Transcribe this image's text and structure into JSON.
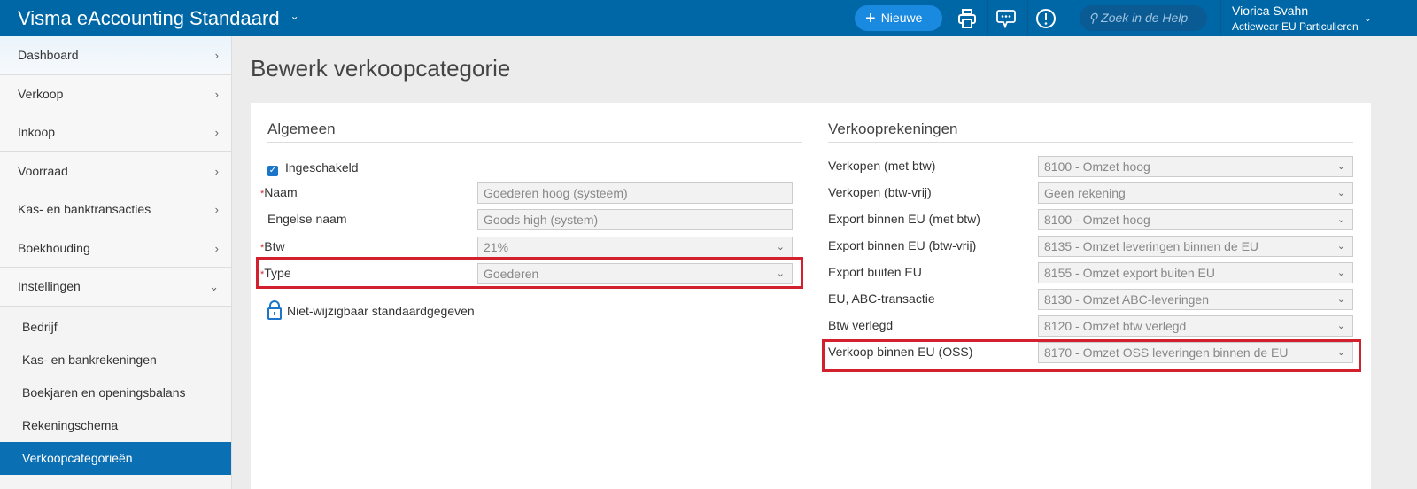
{
  "topbar": {
    "brand": "Visma eAccounting Standaard",
    "new_label": "Nieuwe",
    "search_placeholder": "Zoek in de Help",
    "user_name": "Viorica Svahn",
    "company": "Actiewear EU Particulieren"
  },
  "sidebar": {
    "items": [
      {
        "label": "Dashboard"
      },
      {
        "label": "Verkoop"
      },
      {
        "label": "Inkoop"
      },
      {
        "label": "Voorraad"
      },
      {
        "label": "Kas- en banktransacties"
      },
      {
        "label": "Boekhouding"
      },
      {
        "label": "Instellingen"
      }
    ],
    "subitems": [
      {
        "label": "Bedrijf"
      },
      {
        "label": "Kas- en bankrekeningen"
      },
      {
        "label": "Boekjaren en openingsbalans"
      },
      {
        "label": "Rekeningschema"
      },
      {
        "label": "Verkoopcategorieën",
        "active": true
      }
    ]
  },
  "page": {
    "title": "Bewerk verkoopcategorie"
  },
  "general": {
    "heading": "Algemeen",
    "enabled_label": "Ingeschakeld",
    "enabled": true,
    "fields": [
      {
        "label": "Naam",
        "required": true,
        "value": "Goederen hoog (systeem)"
      },
      {
        "label": "Engelse naam",
        "required": false,
        "value": "Goods high (system)"
      },
      {
        "label": "Btw",
        "required": true,
        "value": "21%",
        "dropdown": true
      },
      {
        "label": "Type",
        "required": true,
        "value": "Goederen",
        "dropdown": true
      }
    ],
    "lock_note": "Niet-wijzigbaar standaardgegeven"
  },
  "accounts": {
    "heading": "Verkooprekeningen",
    "rows": [
      {
        "label": "Verkopen (met btw)",
        "value": "8100 - Omzet hoog"
      },
      {
        "label": "Verkopen (btw-vrij)",
        "value": "Geen rekening"
      },
      {
        "label": "Export binnen EU (met btw)",
        "value": "8100 - Omzet hoog"
      },
      {
        "label": "Export binnen EU (btw-vrij)",
        "value": "8135 - Omzet leveringen binnen de EU"
      },
      {
        "label": "Export buiten EU",
        "value": "8155 - Omzet export buiten EU"
      },
      {
        "label": "EU, ABC-transactie",
        "value": "8130 - Omzet ABC-leveringen"
      },
      {
        "label": "Btw verlegd",
        "value": "8120 - Omzet btw verlegd"
      },
      {
        "label": "Verkoop binnen EU (OSS)",
        "value": "8170 - Omzet OSS leveringen binnen de EU"
      }
    ]
  },
  "colors": {
    "topbar": "#0067a7",
    "active_nav": "#0a6fb3",
    "highlight": "#d2202f"
  }
}
